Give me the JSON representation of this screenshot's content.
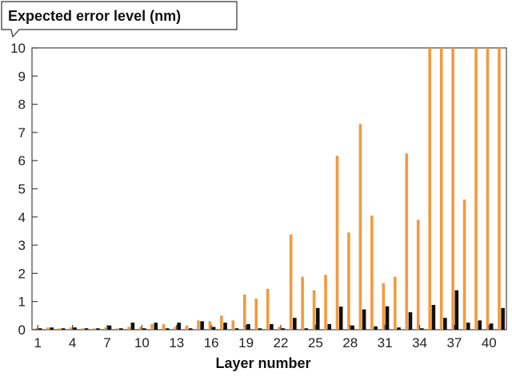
{
  "chart_data": {
    "type": "bar",
    "title": "",
    "ylabel": "Expected error level (nm)",
    "xlabel": "Layer number",
    "ylim": [
      0,
      10
    ],
    "yticks": [
      0,
      1,
      2,
      3,
      4,
      5,
      6,
      7,
      8,
      9,
      10
    ],
    "xtick_labels": [
      "1",
      "4",
      "7",
      "10",
      "13",
      "16",
      "19",
      "22",
      "25",
      "28",
      "31",
      "34",
      "37",
      "40"
    ],
    "categories": [
      1,
      2,
      3,
      4,
      5,
      6,
      7,
      8,
      9,
      10,
      11,
      12,
      13,
      14,
      15,
      16,
      17,
      18,
      19,
      20,
      21,
      22,
      23,
      24,
      25,
      26,
      27,
      28,
      29,
      30,
      31,
      32,
      33,
      34,
      35,
      36,
      37,
      38,
      39,
      40,
      41
    ],
    "series": [
      {
        "color": "#f39a3e",
        "values": [
          0.05,
          0.08,
          0.05,
          0.08,
          0.05,
          0.05,
          0.08,
          0.05,
          0.1,
          0.1,
          0.2,
          0.2,
          0.1,
          0.15,
          0.33,
          0.3,
          0.5,
          0.33,
          1.25,
          1.1,
          1.45,
          0.1,
          3.38,
          1.88,
          1.4,
          1.95,
          6.17,
          3.45,
          7.3,
          4.05,
          1.65,
          1.88,
          6.25,
          3.9,
          10,
          10,
          10,
          4.62,
          10,
          10,
          10
        ]
      },
      {
        "color": "#111111",
        "values": [
          0.05,
          0.08,
          0.05,
          0.08,
          0.05,
          0.05,
          0.15,
          0.05,
          0.25,
          0.05,
          0.25,
          0.05,
          0.25,
          0.05,
          0.3,
          0.1,
          0.25,
          0.05,
          0.2,
          0.05,
          0.2,
          0.05,
          0.42,
          0.05,
          0.77,
          0.2,
          0.82,
          0.15,
          0.72,
          0.12,
          0.83,
          0.08,
          0.62,
          0.05,
          0.88,
          0.42,
          1.4,
          0.25,
          0.33,
          0.22,
          0.77
        ]
      }
    ],
    "grid": false,
    "legend": "none"
  }
}
